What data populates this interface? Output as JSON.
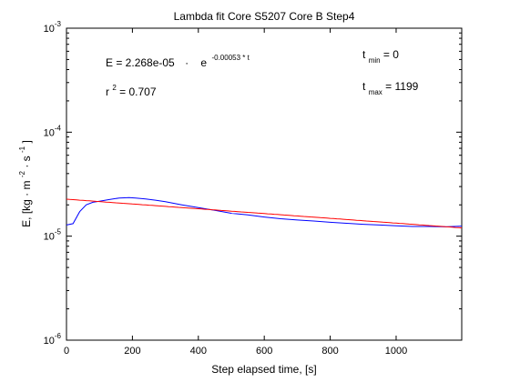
{
  "chart_data": {
    "type": "line",
    "title": "Lambda fit  Core S5207 Core B  Step4",
    "xlabel": "Step elapsed time, [s]",
    "ylabel": {
      "base": "E, [kg ",
      "mid1": " m",
      "exp1": "-2",
      "mid2": "  s",
      "exp2": "-1",
      "end": "]"
    },
    "xlim": [
      0,
      1199
    ],
    "ylim_log10": [
      -6,
      -3
    ],
    "y_scale": "log",
    "x_ticks": [
      0,
      200,
      400,
      600,
      800,
      1000
    ],
    "x_tick_labels": [
      "0",
      "200",
      "400",
      "600",
      "800",
      "1000"
    ],
    "y_ticks_exp": [
      -6,
      -5,
      -4,
      -3
    ],
    "y_tick_labels": [
      {
        "base": "10",
        "exp": "-6"
      },
      {
        "base": "10",
        "exp": "-5"
      },
      {
        "base": "10",
        "exp": "-4"
      },
      {
        "base": "10",
        "exp": "-3"
      }
    ],
    "series": [
      {
        "color": "#0000ff",
        "x": [
          0,
          20,
          40,
          60,
          80,
          100,
          130,
          160,
          190,
          210,
          240,
          270,
          300,
          350,
          400,
          450,
          500,
          550,
          600,
          650,
          700,
          750,
          800,
          850,
          900,
          950,
          1000,
          1050,
          1100,
          1150,
          1199
        ],
        "y": [
          1.28e-05,
          1.32e-05,
          1.72e-05,
          2e-05,
          2.12e-05,
          2.17e-05,
          2.25e-05,
          2.33e-05,
          2.35e-05,
          2.33e-05,
          2.28e-05,
          2.22e-05,
          2.15e-05,
          2e-05,
          1.88e-05,
          1.77e-05,
          1.66e-05,
          1.6e-05,
          1.53e-05,
          1.47e-05,
          1.43e-05,
          1.4e-05,
          1.36e-05,
          1.33e-05,
          1.3e-05,
          1.28e-05,
          1.26e-05,
          1.24e-05,
          1.24e-05,
          1.23e-05,
          1.25e-05
        ]
      },
      {
        "color": "#ff0000",
        "function": "2.268e-05 * exp(-0.00053 * t)",
        "a": 2.268e-05,
        "k": -0.00053
      }
    ],
    "annotations": {
      "equation": {
        "lhs": "E = 2.268e-05",
        "dot": "·",
        "base": "e",
        "exp": "-0.00053 * t"
      },
      "r2": {
        "base": "r",
        "exp": "2",
        "rest": " = 0.707"
      },
      "tmin": {
        "base": "t",
        "sub": "min",
        "rest": " = 0"
      },
      "tmax": {
        "base": "t",
        "sub": "max",
        "rest": " = 1199"
      }
    },
    "grid": false,
    "legend": "none"
  }
}
